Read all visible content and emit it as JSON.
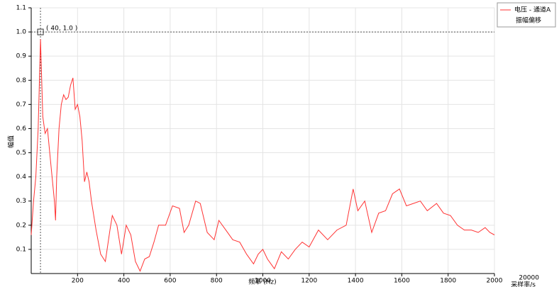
{
  "chart_data": {
    "type": "line",
    "x_label": "频率 (Hz)",
    "y_label": "幅值",
    "x": [
      0,
      10,
      20,
      30,
      40,
      50,
      60,
      70,
      80,
      90,
      100,
      105,
      110,
      120,
      130,
      140,
      150,
      160,
      170,
      180,
      190,
      200,
      210,
      220,
      230,
      240,
      250,
      260,
      280,
      300,
      320,
      340,
      350,
      370,
      390,
      410,
      430,
      450,
      470,
      490,
      510,
      530,
      550,
      580,
      610,
      640,
      660,
      680,
      710,
      730,
      760,
      790,
      810,
      840,
      870,
      900,
      930,
      960,
      980,
      1000,
      1020,
      1050,
      1080,
      1110,
      1140,
      1170,
      1200,
      1240,
      1280,
      1320,
      1360,
      1390,
      1410,
      1440,
      1470,
      1500,
      1530,
      1560,
      1590,
      1620,
      1650,
      1680,
      1710,
      1750,
      1780,
      1810,
      1840,
      1870,
      1900,
      1930,
      1960,
      1980,
      2000
    ],
    "series": [
      {
        "name": "电压 - 通道A",
        "color": "#ff3333",
        "values": [
          0.16,
          0.3,
          0.4,
          0.6,
          0.97,
          0.65,
          0.58,
          0.6,
          0.5,
          0.4,
          0.3,
          0.22,
          0.4,
          0.6,
          0.7,
          0.74,
          0.72,
          0.73,
          0.78,
          0.81,
          0.68,
          0.7,
          0.65,
          0.55,
          0.38,
          0.42,
          0.38,
          0.3,
          0.18,
          0.08,
          0.05,
          0.18,
          0.24,
          0.2,
          0.08,
          0.2,
          0.16,
          0.05,
          0.01,
          0.06,
          0.07,
          0.13,
          0.2,
          0.2,
          0.28,
          0.27,
          0.17,
          0.2,
          0.3,
          0.29,
          0.17,
          0.14,
          0.22,
          0.18,
          0.14,
          0.13,
          0.08,
          0.04,
          0.08,
          0.1,
          0.06,
          0.02,
          0.09,
          0.06,
          0.1,
          0.13,
          0.11,
          0.18,
          0.14,
          0.18,
          0.2,
          0.35,
          0.26,
          0.3,
          0.17,
          0.25,
          0.26,
          0.33,
          0.35,
          0.28,
          0.29,
          0.3,
          0.26,
          0.29,
          0.25,
          0.24,
          0.2,
          0.18,
          0.18,
          0.17,
          0.19,
          0.17,
          0.16
        ]
      }
    ],
    "xlim": [
      0,
      2000
    ],
    "ylim": [
      0,
      1.1
    ],
    "xticks": [
      200,
      400,
      600,
      800,
      1000,
      1200,
      1400,
      1600,
      1800,
      2000
    ],
    "yticks": [
      0.1,
      0.2,
      0.3,
      0.4,
      0.5,
      0.6,
      0.7,
      0.8,
      0.9,
      {
        "value": 1,
        "label": "1.0"
      },
      1.1
    ],
    "grid": true,
    "cursor": {
      "x": 40,
      "y": 1,
      "label": "( 40, 1.0 )"
    },
    "legend_extra": "振幅偏移",
    "sample_rate": {
      "value": 20000,
      "label": "采样率/s"
    }
  }
}
